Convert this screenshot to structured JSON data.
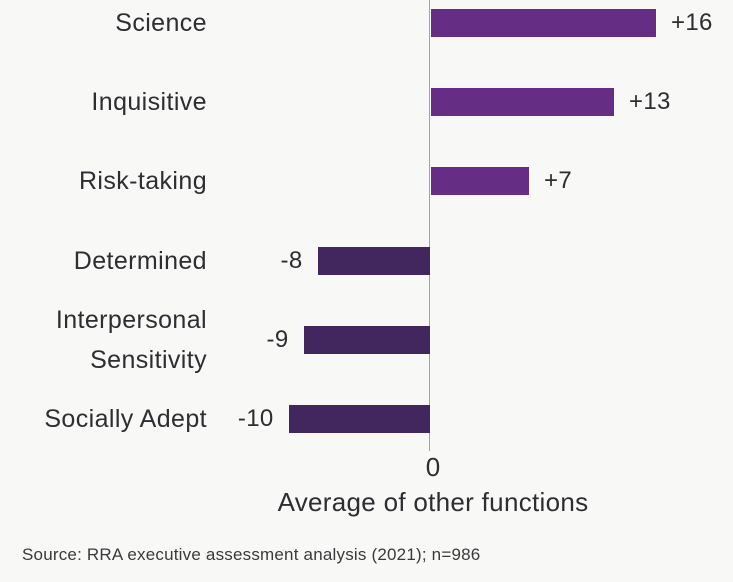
{
  "chart_data": {
    "type": "bar",
    "orientation": "horizontal",
    "title": "",
    "xlabel": "Average of other functions",
    "ylabel": "",
    "categories": [
      "Science",
      "Inquisitive",
      "Risk-taking",
      "Determined",
      "Interpersonal Sensitivity",
      "Socially Adept"
    ],
    "category_labels_display": [
      "Science",
      "Inquisitive",
      "Risk-taking",
      "Determined",
      "Interpersonal\nSensitivity",
      "Socially Adept"
    ],
    "values": [
      16,
      13,
      7,
      -8,
      -9,
      -10
    ],
    "value_labels": [
      "+16",
      "+13",
      "+7",
      "-8",
      "-9",
      "-10"
    ],
    "x_tick_labels": [
      "0"
    ],
    "xlim": [
      -15.5,
      21.6
    ],
    "grid": false,
    "legend": false
  },
  "colors": {
    "background": "#f8f8f6",
    "bar_positive": "#652d84",
    "bar_negative": "#42275e",
    "axis_line": "#a6a2a4",
    "text": "#2d2d32",
    "source_text": "#3a3a3d"
  },
  "source_note": "Source: RRA executive assessment analysis (2021); n=986"
}
